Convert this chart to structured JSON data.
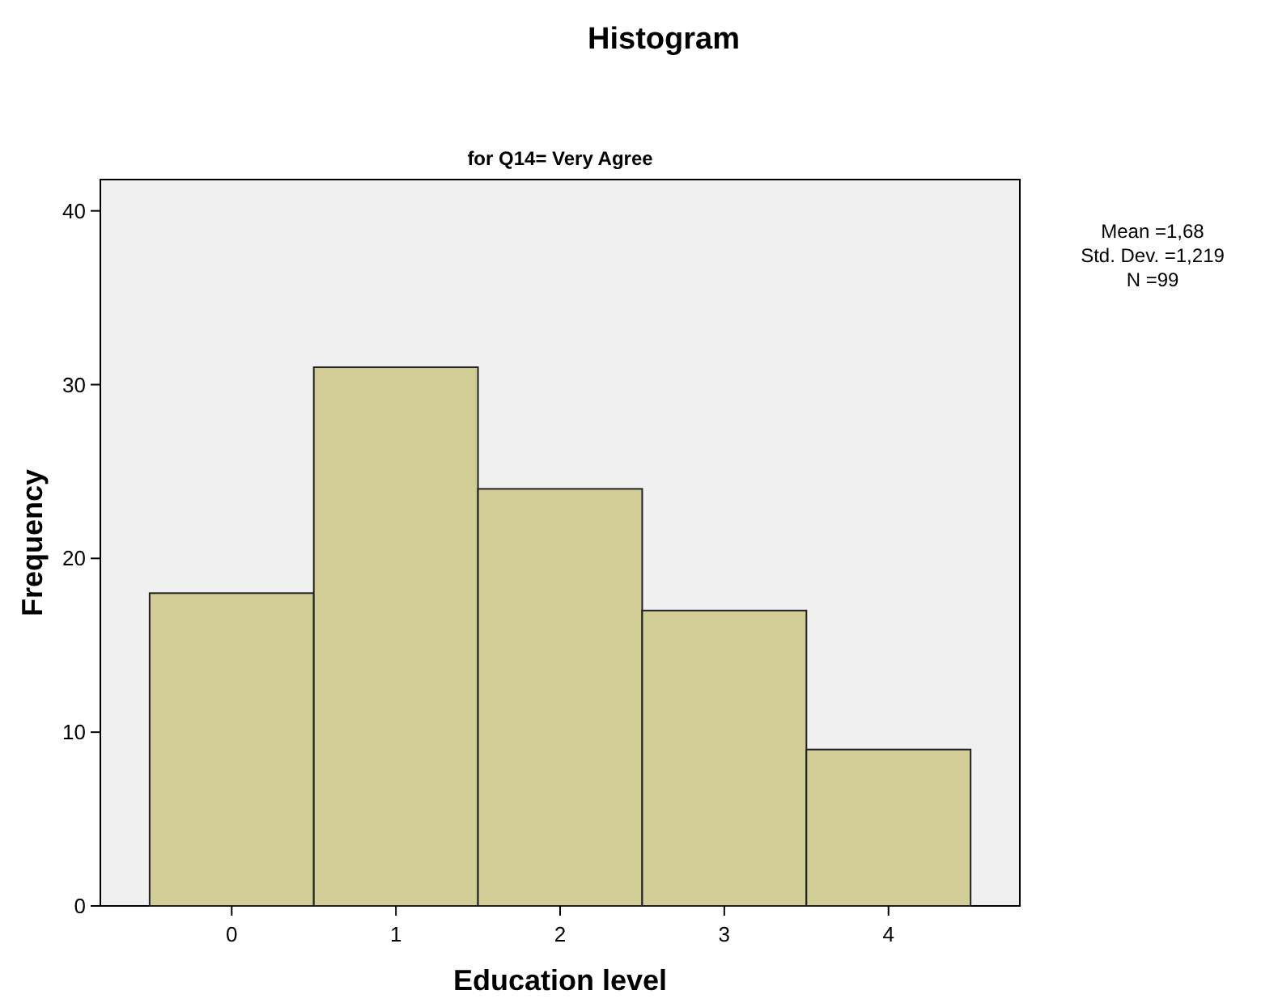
{
  "chart_data": {
    "type": "histogram",
    "title": "Histogram",
    "subtitle": "for Q14= Very Agree",
    "xlabel": "Education level",
    "ylabel": "Frequency",
    "bins": [
      -0.5,
      0.5,
      1.5,
      2.5,
      3.5,
      4.5
    ],
    "values": [
      18,
      31,
      24,
      17,
      9
    ],
    "color": "#d3ce97",
    "xlim": [
      -0.8,
      4.8
    ],
    "xticks": [
      0,
      1,
      2,
      3,
      4
    ],
    "ylim": [
      0,
      41.8
    ],
    "yticks": [
      0,
      10,
      20,
      30,
      40
    ],
    "annotations": [
      "Mean =1,68",
      "Std. Dev. =1,219",
      "N =99"
    ],
    "grid": false
  }
}
